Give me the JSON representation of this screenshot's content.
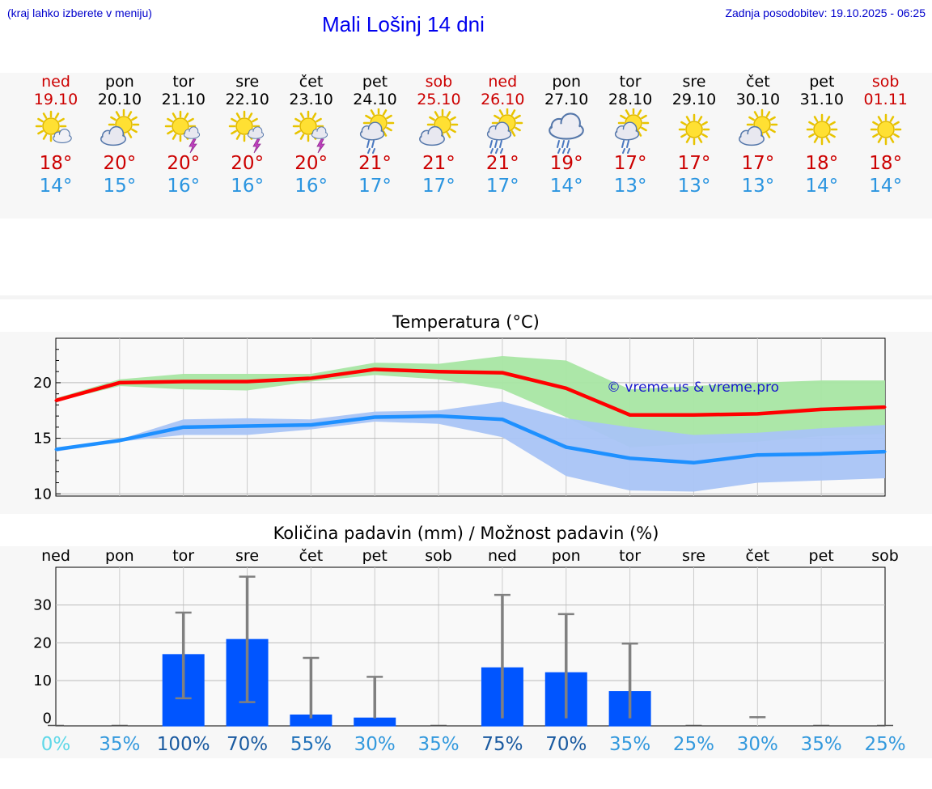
{
  "header": {
    "hint": "(kraj lahko izberete v meniju)",
    "title": "Mali Lošinj 14 dni",
    "updated": "Zadnja posodobitev: 19.10.2025 - 06:25"
  },
  "days": [
    {
      "name": "ned",
      "date": "19.10",
      "weekend": true,
      "icon": "sun-cloud-icon",
      "tmax": "18°",
      "tmin": "14°"
    },
    {
      "name": "pon",
      "date": "20.10",
      "weekend": false,
      "icon": "cloud-sun-icon",
      "tmax": "20°",
      "tmin": "15°"
    },
    {
      "name": "tor",
      "date": "21.10",
      "weekend": false,
      "icon": "sun-thunder-icon",
      "tmax": "20°",
      "tmin": "16°"
    },
    {
      "name": "sre",
      "date": "22.10",
      "weekend": false,
      "icon": "sun-thunder-icon",
      "tmax": "20°",
      "tmin": "16°"
    },
    {
      "name": "čet",
      "date": "23.10",
      "weekend": false,
      "icon": "sun-thunder-icon",
      "tmax": "20°",
      "tmin": "16°"
    },
    {
      "name": "pet",
      "date": "24.10",
      "weekend": false,
      "icon": "sun-rain-icon",
      "tmax": "21°",
      "tmin": "17°"
    },
    {
      "name": "sob",
      "date": "25.10",
      "weekend": true,
      "icon": "cloud-sun-icon",
      "tmax": "21°",
      "tmin": "17°"
    },
    {
      "name": "ned",
      "date": "26.10",
      "weekend": true,
      "icon": "sun-heavy-rain-icon",
      "tmax": "21°",
      "tmin": "17°"
    },
    {
      "name": "pon",
      "date": "27.10",
      "weekend": false,
      "icon": "cloud-rain-icon",
      "tmax": "19°",
      "tmin": "14°"
    },
    {
      "name": "tor",
      "date": "28.10",
      "weekend": false,
      "icon": "sun-rain-icon",
      "tmax": "17°",
      "tmin": "13°"
    },
    {
      "name": "sre",
      "date": "29.10",
      "weekend": false,
      "icon": "sun-icon",
      "tmax": "17°",
      "tmin": "13°"
    },
    {
      "name": "čet",
      "date": "30.10",
      "weekend": false,
      "icon": "cloud-sun-icon",
      "tmax": "17°",
      "tmin": "13°"
    },
    {
      "name": "pet",
      "date": "31.10",
      "weekend": false,
      "icon": "sun-icon",
      "tmax": "18°",
      "tmin": "14°"
    },
    {
      "name": "sob",
      "date": "01.11",
      "weekend": true,
      "icon": "sun-icon",
      "tmax": "18°",
      "tmin": "14°"
    }
  ],
  "colors": {
    "max_line": "#ff0000",
    "min_line": "#1e90ff",
    "max_band": "#a8e6a3",
    "min_band": "#a9c4f5",
    "bar": "#0055ff",
    "error_bar": "#808080"
  },
  "chart_data": [
    {
      "type": "line",
      "title": "Temperatura (°C)",
      "watermark": "© vreme.us & vreme.pro",
      "x": [
        0,
        1,
        2,
        3,
        4,
        5,
        6,
        7,
        8,
        9,
        10,
        11,
        12,
        13
      ],
      "ylim": [
        9.8,
        24
      ],
      "yticks": [
        10,
        15,
        20
      ],
      "grid": true,
      "series": [
        {
          "name": "max",
          "values": [
            18.4,
            20.0,
            20.1,
            20.1,
            20.4,
            21.2,
            21.0,
            20.9,
            19.5,
            17.1,
            17.1,
            17.2,
            17.6,
            17.8
          ],
          "band_low": [
            18.3,
            19.7,
            19.4,
            19.3,
            20.1,
            20.7,
            20.3,
            19.4,
            16.9,
            14.2,
            14.5,
            14.7,
            15.2,
            15.4
          ],
          "band_high": [
            18.6,
            20.3,
            20.8,
            20.8,
            20.8,
            21.8,
            21.7,
            22.4,
            22.0,
            19.4,
            19.7,
            20.0,
            20.2,
            20.2
          ]
        },
        {
          "name": "min",
          "values": [
            14.0,
            14.8,
            16.0,
            16.1,
            16.2,
            16.9,
            17.0,
            16.7,
            14.2,
            13.2,
            12.8,
            13.5,
            13.6,
            13.8
          ],
          "band_low": [
            13.8,
            14.7,
            15.3,
            15.3,
            15.8,
            16.5,
            16.3,
            15.1,
            11.6,
            10.3,
            10.2,
            11.0,
            11.2,
            11.4
          ],
          "band_high": [
            14.1,
            14.9,
            16.7,
            16.8,
            16.7,
            17.4,
            17.5,
            18.3,
            16.8,
            16.0,
            15.3,
            15.5,
            15.9,
            16.2
          ]
        }
      ]
    },
    {
      "type": "bar",
      "title": "Količina padavin (mm) / Možnost padavin (%)",
      "categories": [
        "ned",
        "pon",
        "tor",
        "sre",
        "čet",
        "pet",
        "sob",
        "ned",
        "pon",
        "tor",
        "sre",
        "čet",
        "pet",
        "sob"
      ],
      "values": [
        0,
        0,
        17,
        21,
        1,
        0.2,
        0,
        13.5,
        12.2,
        7.2,
        0,
        0,
        0,
        0
      ],
      "err_low": [
        0,
        0,
        5.3,
        4.3,
        0,
        0,
        0,
        0,
        0,
        0,
        0,
        0,
        0,
        0
      ],
      "err_high": [
        0,
        0,
        28.0,
        37.5,
        16.0,
        11.0,
        0,
        32.7,
        27.6,
        19.8,
        0,
        0.3,
        0,
        0
      ],
      "probabilities": [
        "0%",
        "35%",
        "100%",
        "70%",
        "55%",
        "30%",
        "35%",
        "75%",
        "70%",
        "35%",
        "25%",
        "30%",
        "35%",
        "25%"
      ],
      "prob_colors": [
        "#5fd8e8",
        "#3399dd",
        "#1a5aa0",
        "#1a5aa0",
        "#2070b8",
        "#3399dd",
        "#3399dd",
        "#1a5aa0",
        "#1a5aa0",
        "#3399dd",
        "#3399dd",
        "#3399dd",
        "#3399dd",
        "#3399dd"
      ],
      "ylim": [
        -2,
        40
      ],
      "ytick_values": [
        0,
        10,
        20,
        30
      ],
      "ytick_labels": [
        "0",
        "10",
        "20",
        "30"
      ],
      "grid": true
    }
  ]
}
